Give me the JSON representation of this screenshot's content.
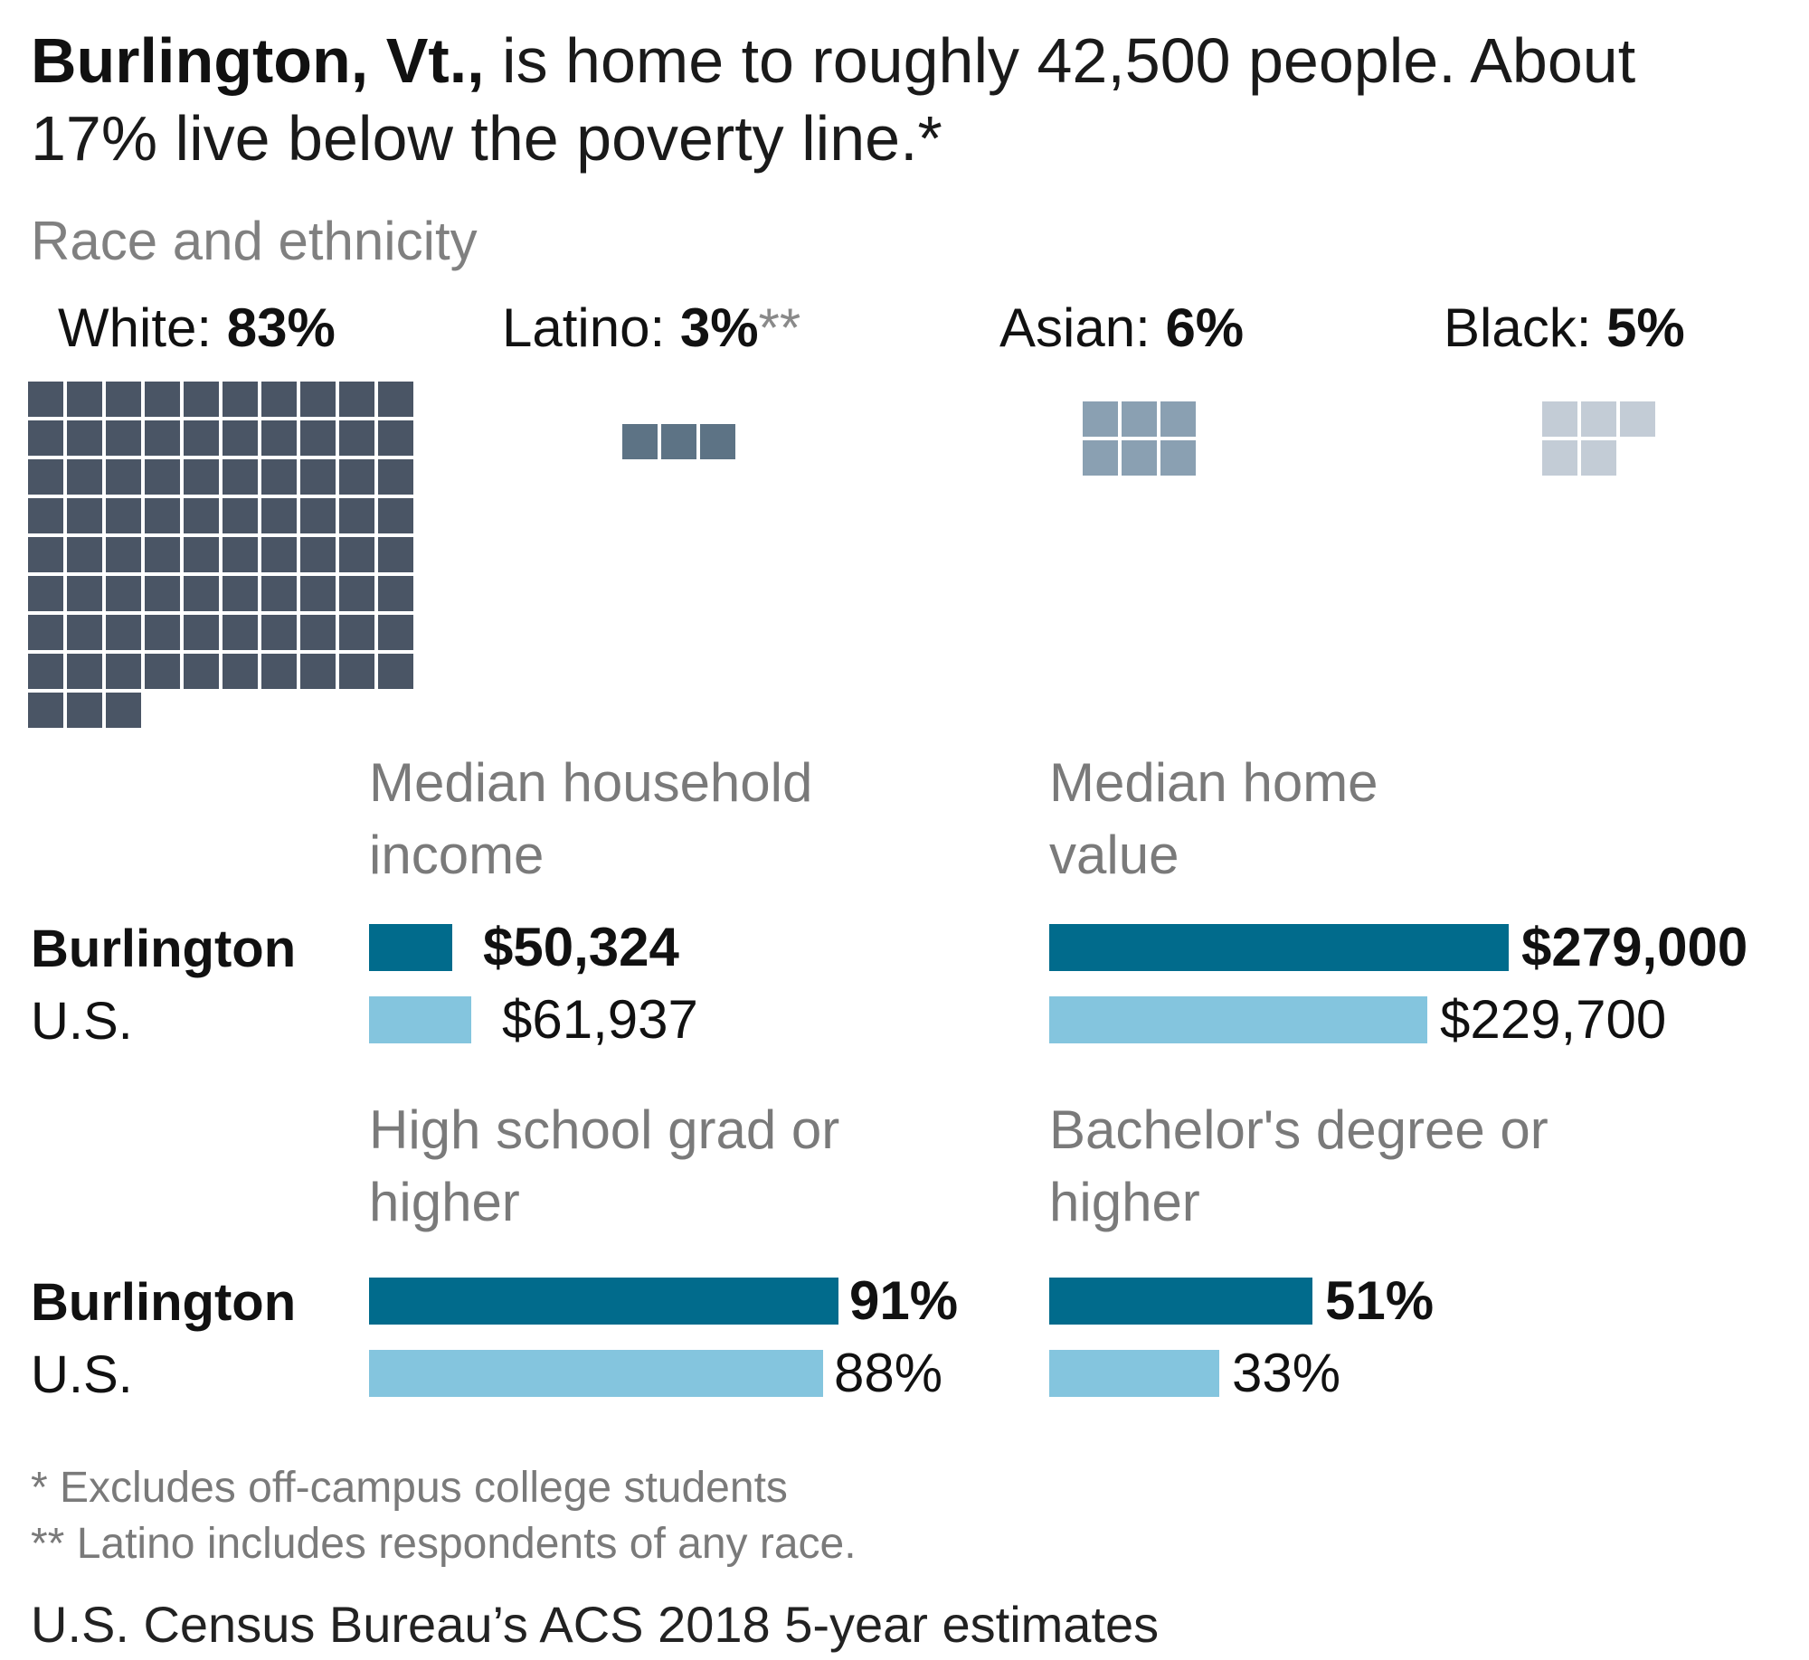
{
  "intro": {
    "bold": "Burlington, Vt.,",
    "rest": " is home to roughly 42,500 people. About 17% live below the poverty line.*"
  },
  "colors": {
    "white": "#4a5565",
    "latino": "#5d7385",
    "asian": "#8aa0b2",
    "black": "#c3ccd6",
    "city_bar": "#016b8c",
    "us_bar": "#84c5de"
  },
  "race": {
    "title": "Race and ethnicity",
    "groups": [
      {
        "name": "White: ",
        "pct_label": "83%",
        "note": "",
        "value": 83
      },
      {
        "name": "Latino: ",
        "pct_label": "3%",
        "note": "**",
        "value": 3
      },
      {
        "name": "Asian: ",
        "pct_label": "6%",
        "note": "",
        "value": 6
      },
      {
        "name": "Black: ",
        "pct_label": "5%",
        "note": "",
        "value": 5
      }
    ]
  },
  "row_labels": {
    "city": "Burlington",
    "us": "U.S."
  },
  "chart_data": [
    {
      "type": "waffle",
      "title": "Race and ethnicity",
      "categories": [
        "White",
        "Latino",
        "Asian",
        "Black"
      ],
      "values": [
        83,
        3,
        6,
        5
      ],
      "unit": "%"
    },
    {
      "type": "bar",
      "title": "Median household income",
      "categories": [
        "Burlington",
        "U.S."
      ],
      "values": [
        50324,
        61937
      ],
      "labels": [
        "$50,324",
        "$61,937"
      ]
    },
    {
      "type": "bar",
      "title": "Median home value",
      "categories": [
        "Burlington",
        "U.S."
      ],
      "values": [
        279000,
        229700
      ],
      "labels": [
        "$279,000",
        "$229,700"
      ]
    },
    {
      "type": "bar",
      "title": "High school grad or higher",
      "categories": [
        "Burlington",
        "U.S."
      ],
      "values": [
        91,
        88
      ],
      "labels": [
        "91%",
        "88%"
      ]
    },
    {
      "type": "bar",
      "title": "Bachelor's degree or higher",
      "categories": [
        "Burlington",
        "U.S."
      ],
      "values": [
        51,
        33
      ],
      "labels": [
        "51%",
        "33%"
      ]
    }
  ],
  "footnotes": {
    "one": "* Excludes off-campus college students",
    "two": "** Latino includes respondents of any race."
  },
  "source": "U.S. Census Bureau’s ACS 2018 5-year estimates"
}
